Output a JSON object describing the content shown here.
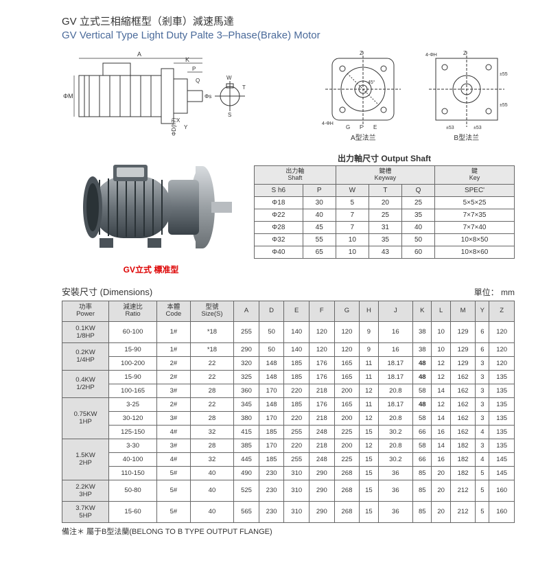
{
  "title_cn": "GV 立式三相縮框型（剎車）減速馬達",
  "title_en": "GV Vertical Type Light Duty Palte 3–Phase(Brake) Motor",
  "diag_labels": {
    "left_dims": [
      "A",
      "K",
      "P",
      "Q",
      "X",
      "Y",
      "ΦM",
      "Φs",
      "ΦD(h7)",
      "W",
      "T",
      "S"
    ],
    "flange_a": "A型法兰",
    "flange_b": "B型法兰",
    "flange_dims": [
      "Z",
      "G",
      "F",
      "E",
      "4-ΦH",
      "45°",
      "±55",
      "±55",
      "±53",
      "±53",
      "4-ΦH",
      "Z",
      "G",
      "F",
      "E"
    ]
  },
  "photo_caption": "GV立式 標准型",
  "output_shaft": {
    "title": "出力軸尺寸 Output Shaft",
    "group_headers": [
      {
        "label_cn": "出力軸",
        "label_en": "Shaft",
        "span": 2
      },
      {
        "label_cn": "鍵槽",
        "label_en": "Keyway",
        "span": 3
      },
      {
        "label_cn": "鍵",
        "label_en": "Key",
        "span": 1
      }
    ],
    "cols": [
      "S  h6",
      "P",
      "W",
      "T",
      "Q",
      "SPEC'"
    ],
    "rows": [
      [
        "Φ18",
        "30",
        "5",
        "20",
        "25",
        "5×5×25"
      ],
      [
        "Φ22",
        "40",
        "7",
        "25",
        "35",
        "7×7×35"
      ],
      [
        "Φ28",
        "45",
        "7",
        "31",
        "40",
        "7×7×40"
      ],
      [
        "Φ32",
        "55",
        "10",
        "35",
        "50",
        "10×8×50"
      ],
      [
        "Φ40",
        "65",
        "10",
        "43",
        "60",
        "10×8×60"
      ]
    ]
  },
  "dimensions": {
    "heading": "安裝尺寸 (Dimensions)",
    "unit": "單位： mm",
    "cols": [
      {
        "cn": "功率",
        "en": "Power"
      },
      {
        "cn": "減速比",
        "en": "Ratio"
      },
      {
        "cn": "本體",
        "en": "Code"
      },
      {
        "cn": "型號",
        "en": "Size(S)"
      },
      {
        "cn": "A"
      },
      {
        "cn": "D"
      },
      {
        "cn": "E"
      },
      {
        "cn": "F"
      },
      {
        "cn": "G"
      },
      {
        "cn": "H"
      },
      {
        "cn": "J"
      },
      {
        "cn": "K"
      },
      {
        "cn": "L"
      },
      {
        "cn": "M"
      },
      {
        "cn": "Y"
      },
      {
        "cn": "Z"
      }
    ],
    "groups": [
      {
        "power": "0.1KW\n1/8HP",
        "rows": [
          [
            "60-100",
            "1#",
            "*18",
            "255",
            "50",
            "140",
            "120",
            "120",
            "9",
            "16",
            "38",
            "10",
            "129",
            "6",
            "120"
          ]
        ]
      },
      {
        "power": "0.2KW\n1/4HP",
        "rows": [
          [
            "15-90",
            "1#",
            "*18",
            "290",
            "50",
            "140",
            "120",
            "120",
            "9",
            "16",
            "38",
            "10",
            "129",
            "6",
            "120"
          ],
          [
            "100-200",
            "2#",
            "22",
            "320",
            "148",
            "185",
            "176",
            "165",
            "11",
            "18.17",
            "48",
            "12",
            "129",
            "3",
            "120"
          ]
        ]
      },
      {
        "power": "0.4KW\n1/2HP",
        "rows": [
          [
            "15-90",
            "2#",
            "22",
            "325",
            "148",
            "185",
            "176",
            "165",
            "11",
            "18.17",
            "48",
            "12",
            "162",
            "3",
            "135"
          ],
          [
            "100-165",
            "3#",
            "28",
            "360",
            "170",
            "220",
            "218",
            "200",
            "12",
            "20.8",
            "58",
            "14",
            "162",
            "3",
            "135"
          ]
        ]
      },
      {
        "power": "0.75KW\n1HP",
        "rows": [
          [
            "3-25",
            "2#",
            "22",
            "345",
            "148",
            "185",
            "176",
            "165",
            "11",
            "18.17",
            "48",
            "12",
            "162",
            "3",
            "135"
          ],
          [
            "30-120",
            "3#",
            "28",
            "380",
            "170",
            "220",
            "218",
            "200",
            "12",
            "20.8",
            "58",
            "14",
            "162",
            "3",
            "135"
          ],
          [
            "125-150",
            "4#",
            "32",
            "415",
            "185",
            "255",
            "248",
            "225",
            "15",
            "30.2",
            "66",
            "16",
            "162",
            "4",
            "135"
          ]
        ]
      },
      {
        "power": "1.5KW\n2HP",
        "rows": [
          [
            "3-30",
            "3#",
            "28",
            "385",
            "170",
            "220",
            "218",
            "200",
            "12",
            "20.8",
            "58",
            "14",
            "182",
            "3",
            "135"
          ],
          [
            "40-100",
            "4#",
            "32",
            "445",
            "185",
            "255",
            "248",
            "225",
            "15",
            "30.2",
            "66",
            "16",
            "182",
            "4",
            "145"
          ],
          [
            "110-150",
            "5#",
            "40",
            "490",
            "230",
            "310",
            "290",
            "268",
            "15",
            "36",
            "85",
            "20",
            "182",
            "5",
            "145"
          ]
        ]
      },
      {
        "power": "2.2KW\n3HP",
        "rows": [
          [
            "50-80",
            "5#",
            "40",
            "525",
            "230",
            "310",
            "290",
            "268",
            "15",
            "36",
            "85",
            "20",
            "212",
            "5",
            "160"
          ]
        ]
      },
      {
        "power": "3.7KW\n5HP",
        "rows": [
          [
            "15-60",
            "5#",
            "40",
            "565",
            "230",
            "310",
            "290",
            "268",
            "15",
            "36",
            "85",
            "20",
            "212",
            "5",
            "160"
          ]
        ]
      }
    ],
    "bold_k_values": [
      "48"
    ]
  },
  "footnote": "備注＊ 屬于B型法蘭(BELONG TO B TYPE OUTPUT FLANGE)",
  "colors": {
    "title_en": "#4a6a9a",
    "caption_red": "#d00000",
    "hdr_bg": "#e0e0e0",
    "motor_body": "#7a8288",
    "motor_dark": "#4a5258",
    "motor_flange": "#b8bcc0"
  }
}
